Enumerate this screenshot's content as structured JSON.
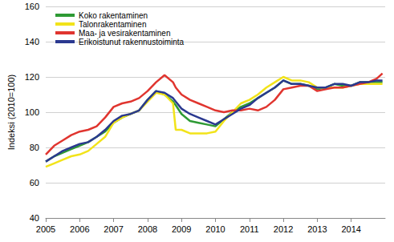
{
  "chart_data": {
    "type": "line",
    "y_label": "Indeksi (2010=100)",
    "x": [
      2005,
      2005.25,
      2005.5,
      2005.75,
      2006,
      2006.25,
      2006.5,
      2006.75,
      2007,
      2007.25,
      2007.5,
      2007.75,
      2008,
      2008.25,
      2008.5,
      2008.75,
      2008.83,
      2009,
      2009.25,
      2009.5,
      2009.75,
      2010,
      2010.25,
      2010.5,
      2010.75,
      2011,
      2011.25,
      2011.5,
      2011.75,
      2012,
      2012.25,
      2012.5,
      2012.75,
      2013,
      2013.25,
      2013.5,
      2013.75,
      2014,
      2014.25,
      2014.5,
      2014.75,
      2014.92
    ],
    "xlim": [
      2005,
      2015
    ],
    "xticks": [
      2005,
      2006,
      2007,
      2008,
      2009,
      2010,
      2011,
      2012,
      2013,
      2014
    ],
    "ylim": [
      40,
      160
    ],
    "yticks": [
      40,
      60,
      80,
      100,
      120,
      140,
      160
    ],
    "grid": true,
    "legend": "upper left",
    "series": [
      {
        "name": "Koko rakentaminen",
        "color": "#2e9a34",
        "values": [
          72,
          75,
          77,
          79,
          81,
          83,
          86,
          89,
          94,
          97,
          99,
          101,
          107,
          112,
          110,
          106,
          104,
          99,
          95,
          94,
          93,
          92,
          96,
          100,
          103,
          105,
          108,
          111,
          114,
          118,
          116,
          116,
          115,
          113,
          114,
          116,
          115,
          115,
          117,
          117,
          117,
          117
        ]
      },
      {
        "name": "Talonrakentaminen",
        "color": "#f2e31a",
        "values": [
          69,
          71,
          73,
          75,
          76,
          78,
          82,
          86,
          94,
          97,
          99,
          101,
          106,
          111,
          110,
          105,
          90,
          90,
          88,
          88,
          88,
          89,
          95,
          100,
          105,
          107,
          110,
          114,
          117,
          120,
          118,
          118,
          117,
          114,
          114,
          114,
          114,
          115,
          116,
          116,
          116,
          116
        ]
      },
      {
        "name": "Maa- ja vesirakentaminen",
        "color": "#e0352f",
        "values": [
          76,
          81,
          84,
          87,
          89,
          90,
          92,
          97,
          103,
          105,
          106,
          108,
          112,
          117,
          121,
          117,
          114,
          110,
          107,
          105,
          103,
          101,
          100,
          101,
          101,
          102,
          101,
          103,
          107,
          113,
          114,
          115,
          115,
          112,
          113,
          114,
          114,
          115,
          116,
          117,
          119,
          122
        ]
      },
      {
        "name": "Erikoistunut rakennustoiminta",
        "color": "#2b3990",
        "values": [
          72,
          75,
          78,
          80,
          82,
          83,
          86,
          90,
          95,
          98,
          99,
          101,
          107,
          112,
          111,
          108,
          106,
          102,
          99,
          97,
          95,
          93,
          96,
          99,
          102,
          104,
          108,
          111,
          114,
          118,
          116,
          116,
          115,
          114,
          114,
          116,
          116,
          115,
          117,
          117,
          118,
          118
        ]
      }
    ]
  }
}
